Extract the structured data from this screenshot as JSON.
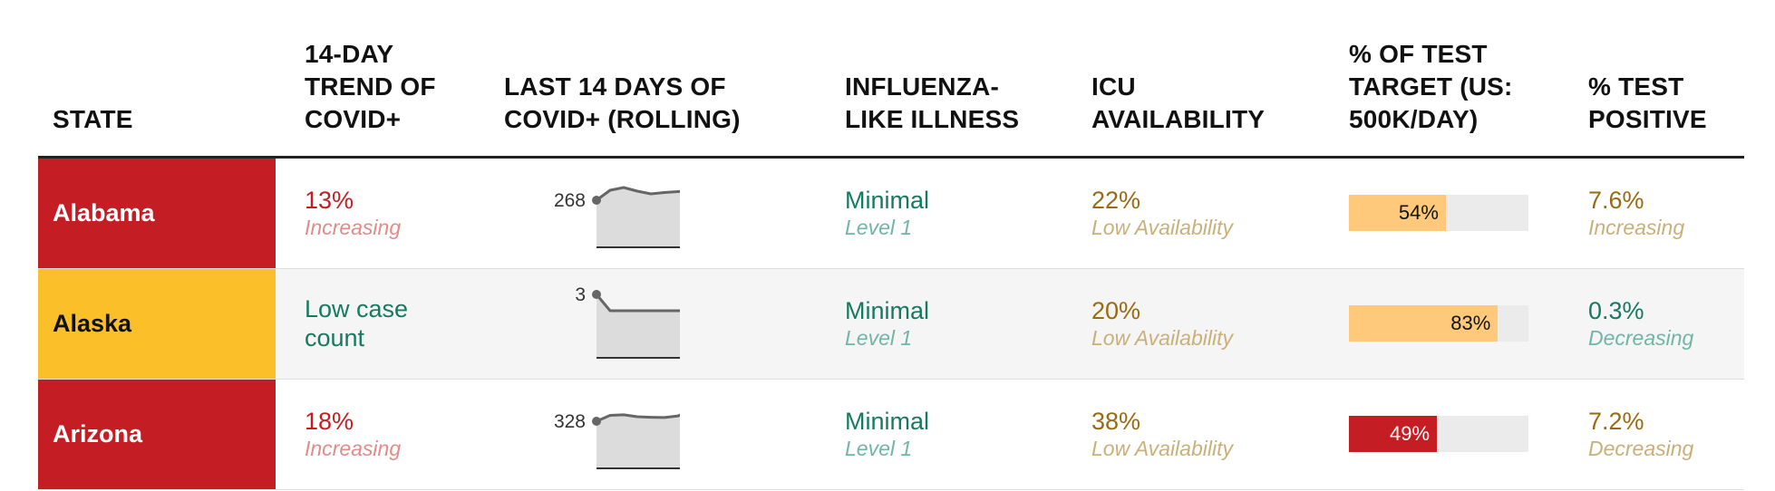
{
  "headers": {
    "state": "STATE",
    "trend": "14-DAY TREND OF COVID+",
    "last14": "LAST 14 DAYS OF COVID+ (ROLLING)",
    "ili": "INFLUENZA-LIKE ILLNESS",
    "icu": "ICU AVAILABILITY",
    "test_target": "% OF TEST TARGET (US: 500K/DAY)",
    "test_positive": "% TEST POSITIVE"
  },
  "colors": {
    "red": "#c41e24",
    "yellow": "#fbbf2a",
    "bar_orange": "#fec97a",
    "bar_red": "#c41e24",
    "bar_track": "#ebebeb"
  },
  "rows": [
    {
      "state": "Alabama",
      "state_color": "red",
      "trend": {
        "value": "13%",
        "label": "Increasing",
        "tone": "red"
      },
      "spark": {
        "start": "268",
        "end": "304",
        "values": [
          268,
          290,
          296,
          288,
          282,
          285,
          287,
          288,
          283,
          280,
          286,
          295,
          296,
          304
        ]
      },
      "ili": {
        "value": "Minimal",
        "label": "Level 1"
      },
      "icu": {
        "value": "22%",
        "label": "Low Availability"
      },
      "test_target": {
        "value": "54%",
        "percent": 54,
        "tone": "orange"
      },
      "test_positive": {
        "value": "7.6%",
        "label": "Increasing",
        "tone": "gold"
      }
    },
    {
      "state": "Alaska",
      "state_color": "yellow",
      "trend": {
        "value": "Low case count",
        "label": "",
        "tone": "green"
      },
      "spark": {
        "start": "3",
        "end": "3",
        "values": [
          3,
          1,
          1,
          1,
          1,
          1,
          1,
          1,
          1,
          1,
          1,
          3,
          1,
          3
        ]
      },
      "ili": {
        "value": "Minimal",
        "label": "Level 1"
      },
      "icu": {
        "value": "20%",
        "label": "Low Availability"
      },
      "test_target": {
        "value": "83%",
        "percent": 83,
        "tone": "orange"
      },
      "test_positive": {
        "value": "0.3%",
        "label": "Decreasing",
        "tone": "green"
      }
    },
    {
      "state": "Arizona",
      "state_color": "red",
      "trend": {
        "value": "18%",
        "label": "Increasing",
        "tone": "red"
      },
      "spark": {
        "start": "328",
        "end": "389",
        "values": [
          328,
          350,
          352,
          345,
          343,
          342,
          348,
          372,
          368,
          370,
          383,
          380,
          382,
          389
        ]
      },
      "ili": {
        "value": "Minimal",
        "label": "Level 1"
      },
      "icu": {
        "value": "38%",
        "label": "Low Availability"
      },
      "test_target": {
        "value": "49%",
        "percent": 49,
        "tone": "red"
      },
      "test_positive": {
        "value": "7.2%",
        "label": "Decreasing",
        "tone": "gold"
      }
    }
  ]
}
